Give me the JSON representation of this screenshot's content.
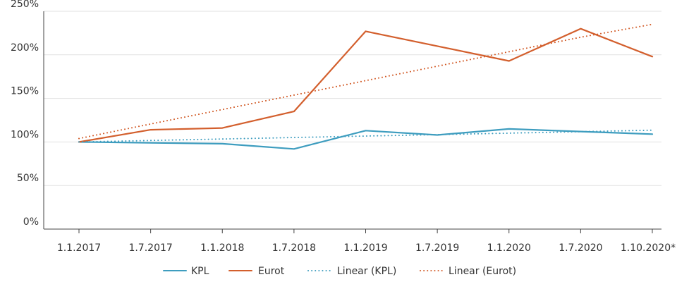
{
  "chart_data": {
    "type": "line",
    "title": "",
    "xlabel": "",
    "ylabel": "",
    "categories": [
      "1.1.2017",
      "1.7.2017",
      "1.1.2018",
      "1.7.2018",
      "1.1.2019",
      "1.7.2019",
      "1.1.2020",
      "1.7.2020",
      "1.10.2020*"
    ],
    "y_ticks": [
      "0%",
      "50%",
      "100%",
      "150%",
      "200%",
      "250%"
    ],
    "ylim": [
      0,
      250
    ],
    "grid": true,
    "legend_position": "bottom",
    "series": [
      {
        "name": "KPL",
        "style": "solid",
        "color": "#3e9dbf",
        "values": [
          100,
          99,
          98,
          92,
          113,
          108,
          115,
          112,
          109
        ]
      },
      {
        "name": "Eurot",
        "style": "solid",
        "color": "#d35f2d",
        "values": [
          100,
          114,
          116,
          135,
          227,
          210,
          193,
          230,
          198
        ]
      },
      {
        "name": "Linear (KPL)",
        "style": "dotted",
        "color": "#3e9dbf",
        "values": [
          100,
          101.7,
          103.4,
          105.1,
          106.8,
          108.4,
          110.1,
          111.8,
          113.5
        ]
      },
      {
        "name": "Linear (Eurot)",
        "style": "dotted",
        "color": "#d35f2d",
        "values": [
          104,
          120.6,
          137.2,
          153.8,
          170.4,
          187.0,
          203.6,
          220.2,
          235
        ]
      }
    ]
  }
}
